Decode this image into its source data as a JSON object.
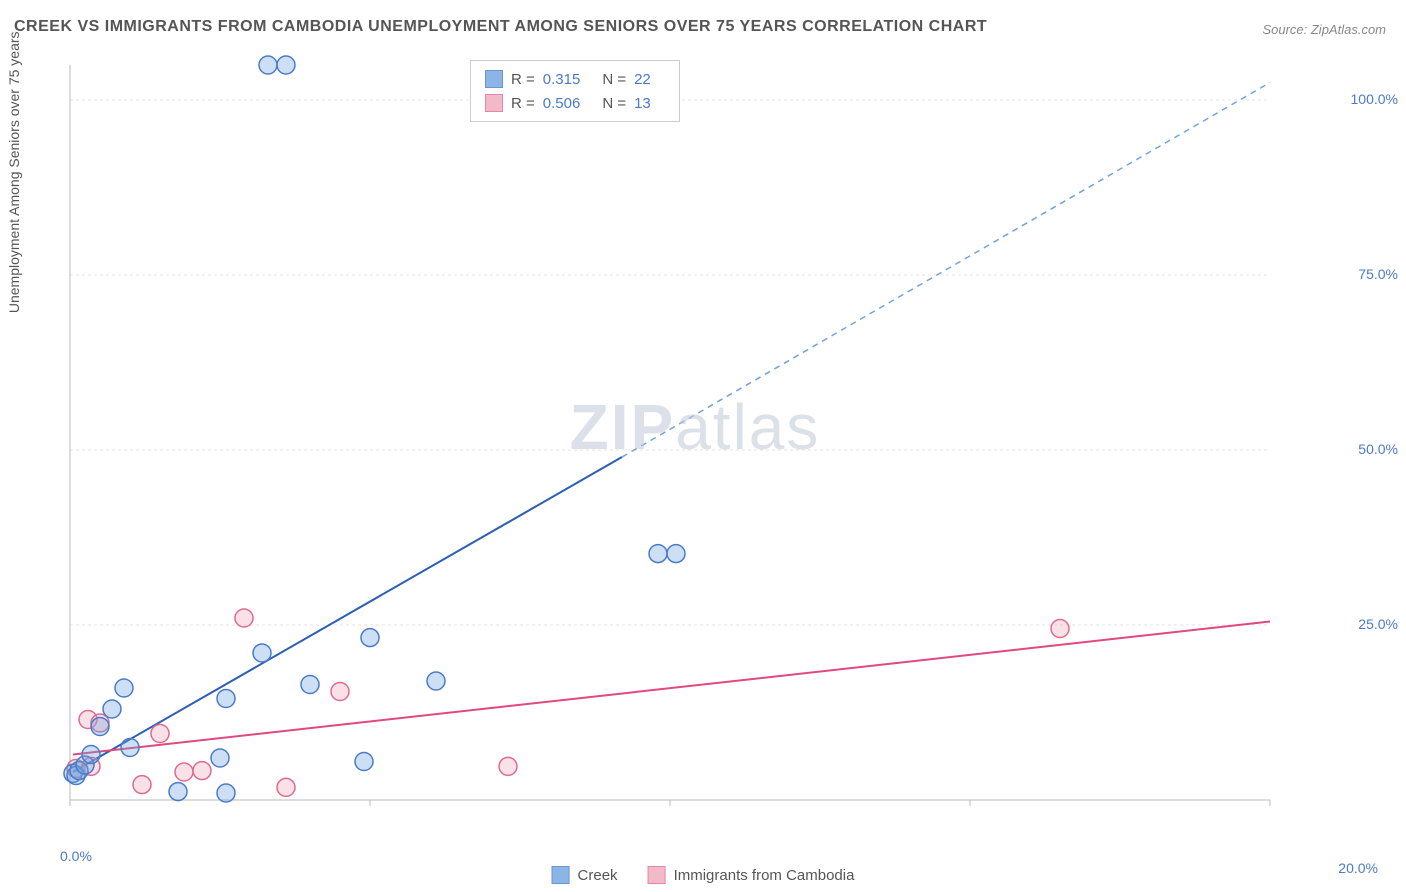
{
  "title": "CREEK VS IMMIGRANTS FROM CAMBODIA UNEMPLOYMENT AMONG SENIORS OVER 75 YEARS CORRELATION CHART",
  "source": "Source: ZipAtlas.com",
  "y_axis_label": "Unemployment Among Seniors over 75 years",
  "watermark": "ZIPatlas",
  "chart": {
    "type": "scatter",
    "xlim": [
      0,
      20
    ],
    "ylim": [
      0,
      105
    ],
    "x_ticks": [
      0,
      5,
      10,
      15,
      20
    ],
    "y_ticks": [
      25,
      50,
      75,
      100
    ],
    "y_tick_labels": [
      "25.0%",
      "50.0%",
      "75.0%",
      "100.0%"
    ],
    "x_origin_label": "0.0%",
    "x_end_label": "20.0%",
    "background_color": "#ffffff",
    "grid_color": "#e3e3e3",
    "axis_color": "#bbbbbb",
    "tick_label_color": "#4a7bc8",
    "marker_radius": 9,
    "marker_stroke_width": 1.5,
    "marker_fill_opacity": 0.35,
    "series": {
      "creek": {
        "label": "Creek",
        "color": "#6fa3e0",
        "stroke": "#4a7bc8",
        "line_color": "#2c5fb3",
        "line_width": 2,
        "dash_line_color": "#6fa3e0",
        "R": "0.315",
        "N": "22",
        "trend_start": {
          "x": 0.05,
          "y": 4
        },
        "trend_split": {
          "x": 9.2,
          "y": 49
        },
        "trend_end": {
          "x": 20,
          "y": 102.5
        },
        "points": [
          {
            "x": 0.05,
            "y": 3.8
          },
          {
            "x": 0.1,
            "y": 3.5
          },
          {
            "x": 0.15,
            "y": 4.2
          },
          {
            "x": 0.25,
            "y": 5.0
          },
          {
            "x": 0.35,
            "y": 6.5
          },
          {
            "x": 0.5,
            "y": 10.5
          },
          {
            "x": 0.7,
            "y": 13.0
          },
          {
            "x": 0.9,
            "y": 16.0
          },
          {
            "x": 1.0,
            "y": 7.5
          },
          {
            "x": 1.8,
            "y": 1.2
          },
          {
            "x": 2.5,
            "y": 6.0
          },
          {
            "x": 2.6,
            "y": 1.0
          },
          {
            "x": 2.6,
            "y": 14.5
          },
          {
            "x": 3.2,
            "y": 21.0
          },
          {
            "x": 3.3,
            "y": 105.0
          },
          {
            "x": 3.6,
            "y": 105.0
          },
          {
            "x": 4.0,
            "y": 16.5
          },
          {
            "x": 4.9,
            "y": 5.5
          },
          {
            "x": 5.0,
            "y": 23.2
          },
          {
            "x": 6.1,
            "y": 17.0
          },
          {
            "x": 9.8,
            "y": 35.2
          },
          {
            "x": 10.1,
            "y": 35.2
          }
        ]
      },
      "cambodia": {
        "label": "Immigrants from Cambodia",
        "color": "#f0a8bc",
        "stroke": "#e06a8f",
        "line_color": "#e04a7a",
        "line_width": 2,
        "R": "0.506",
        "N": "13",
        "trend_start": {
          "x": 0.05,
          "y": 6.5
        },
        "trend_end": {
          "x": 20,
          "y": 25.5
        },
        "points": [
          {
            "x": 0.1,
            "y": 4.5
          },
          {
            "x": 0.3,
            "y": 11.5
          },
          {
            "x": 0.35,
            "y": 4.8
          },
          {
            "x": 0.5,
            "y": 11.0
          },
          {
            "x": 1.2,
            "y": 2.2
          },
          {
            "x": 1.5,
            "y": 9.5
          },
          {
            "x": 1.9,
            "y": 4.0
          },
          {
            "x": 2.2,
            "y": 4.2
          },
          {
            "x": 2.9,
            "y": 26.0
          },
          {
            "x": 3.6,
            "y": 1.8
          },
          {
            "x": 4.5,
            "y": 15.5
          },
          {
            "x": 7.3,
            "y": 4.8
          },
          {
            "x": 16.5,
            "y": 24.5
          }
        ]
      }
    }
  },
  "correlation_legend": {
    "r_label": "R  =",
    "n_label": "N  ="
  }
}
